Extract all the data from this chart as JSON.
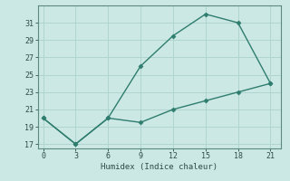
{
  "xlabel": "Humidex (Indice chaleur)",
  "line1_x": [
    0,
    3,
    6,
    9,
    12,
    15,
    18,
    21
  ],
  "line1_y": [
    20,
    17,
    20,
    26,
    29.5,
    32,
    31,
    24
  ],
  "line2_x": [
    0,
    3,
    6,
    9,
    12,
    15,
    18,
    21
  ],
  "line2_y": [
    20,
    17,
    20,
    19.5,
    21,
    22,
    23,
    24
  ],
  "line_color": "#2e7d6e",
  "bg_color": "#cce8e4",
  "grid_color": "#b0d4cf",
  "xlim": [
    -0.5,
    22
  ],
  "ylim": [
    16.5,
    33
  ],
  "xticks": [
    0,
    3,
    6,
    9,
    12,
    15,
    18,
    21
  ],
  "yticks": [
    17,
    19,
    21,
    23,
    25,
    27,
    29,
    31
  ],
  "marker": "D",
  "marker_size": 2.5,
  "linewidth": 1.0
}
